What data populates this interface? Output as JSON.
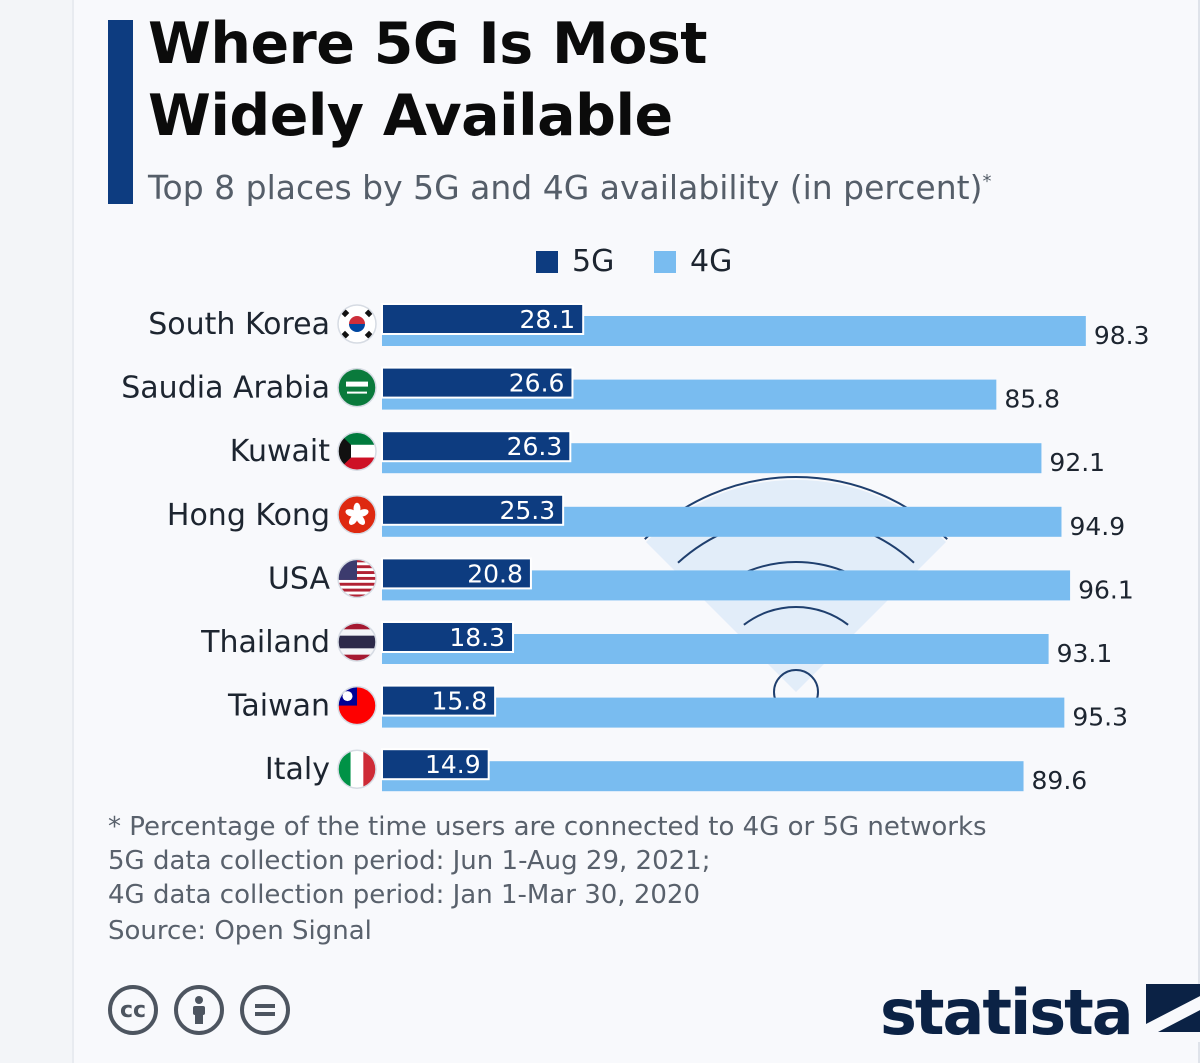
{
  "header": {
    "title_line1": "Where 5G Is Most",
    "title_line2": "Widely Available",
    "subtitle": "Top 8 places by 5G and 4G availability (in percent)",
    "subtitle_mark": "*"
  },
  "colors": {
    "accent": "#0d3c80",
    "series_5g": "#0d3c80",
    "series_4g": "#79bcf0",
    "background": "#f8f9fc"
  },
  "legend": {
    "items": [
      {
        "label": "5G",
        "color": "#0d3c80"
      },
      {
        "label": "4G",
        "color": "#79bcf0"
      }
    ]
  },
  "chart_data": {
    "type": "bar",
    "orientation": "horizontal",
    "categories": [
      "South Korea",
      "Saudia Arabia",
      "Kuwait",
      "Hong Kong",
      "USA",
      "Thailand",
      "Taiwan",
      "Italy"
    ],
    "series": [
      {
        "name": "5G",
        "values": [
          28.1,
          26.6,
          26.3,
          25.3,
          20.8,
          18.3,
          15.8,
          14.9
        ]
      },
      {
        "name": "4G",
        "values": [
          98.3,
          85.8,
          92.1,
          94.9,
          96.1,
          93.1,
          95.3,
          89.6
        ]
      }
    ],
    "flags": [
      "south-korea-flag-icon",
      "saudi-arabia-flag-icon",
      "kuwait-flag-icon",
      "hong-kong-flag-icon",
      "usa-flag-icon",
      "thailand-flag-icon",
      "taiwan-flag-icon",
      "italy-flag-icon"
    ],
    "xlim": [
      0,
      100
    ],
    "grid": false,
    "legend_position": "top-center",
    "background_icon": "wifi-signal-icon"
  },
  "footer": {
    "notes": [
      "* Percentage of the time users are connected to 4G or 5G networks",
      "5G data collection period: Jun 1-Aug 29, 2021;",
      "4G data collection period: Jan 1-Mar 30, 2020"
    ],
    "source": "Source: Open Signal",
    "license_icons": [
      "cc-icon",
      "by-icon",
      "nd-icon"
    ],
    "brand": "statista"
  }
}
